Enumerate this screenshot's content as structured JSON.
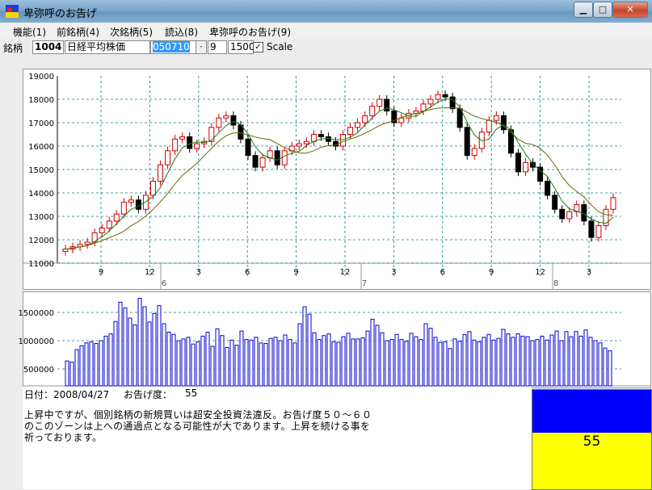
{
  "window": {
    "title": "卑弥呼のお告げ",
    "controls": {
      "minimize": "▁",
      "maximize": "□",
      "close": "✕"
    },
    "icon": "app-icon"
  },
  "menu": [
    {
      "label": "機能(1)"
    },
    {
      "label": "前銘柄(4)"
    },
    {
      "label": "次銘柄(5)"
    },
    {
      "label": "読込(8)"
    },
    {
      "label": "卑弥呼のお告げ(9)"
    }
  ],
  "toolbar": {
    "label": "銘柄",
    "code": "1004",
    "name": "日経平均株価",
    "date": "050710",
    "spin_label": "-",
    "period": "9",
    "count": "1500",
    "scale_checked": "✓",
    "scale_label": "Scale"
  },
  "colors": {
    "up": "#cc0000",
    "down": "#000000",
    "ma_short": "#1a7a1a",
    "ma_long": "#6b6b00",
    "grid": "#008080",
    "volume": "#0000cc",
    "score_top": "#0000ff",
    "score_bottom": "#ffff00"
  },
  "status": {
    "date_label": "日付：2008/04/27",
    "score_label": "お告げ度：",
    "score_value": "55"
  },
  "message": [
    "上昇中ですが、個別銘柄の新規買いは超安全投資法違反。お告げ度５０～６０",
    "のこのゾーンは上への通過点となる可能性が大であります。上昇を続ける事を",
    "祈っております。"
  ],
  "score_box": {
    "value": "55"
  },
  "chart_data": [
    {
      "type": "candlestick",
      "title": "",
      "y_ticks": [
        "19000",
        "18000",
        "17000",
        "16000",
        "15000",
        "14000",
        "13000",
        "12000",
        "11000"
      ],
      "ylim": [
        11000,
        19000
      ],
      "x_month_ticks": [
        "9",
        "12",
        "3",
        "6",
        "9",
        "12",
        "3",
        "6",
        "9",
        "12",
        "3"
      ],
      "x_year_labels": [
        "6",
        "7",
        "8"
      ],
      "grid": true,
      "series": [
        {
          "name": "price",
          "values": [
            11600,
            11700,
            11800,
            11900,
            12300,
            12500,
            12800,
            13100,
            13600,
            13700,
            13300,
            13900,
            14500,
            15200,
            15800,
            16300,
            16400,
            15900,
            16100,
            16200,
            16800,
            17200,
            17300,
            16900,
            16300,
            15600,
            15100,
            15500,
            15800,
            15200,
            15800,
            16000,
            16100,
            16200,
            16500,
            16400,
            16200,
            16000,
            16500,
            16800,
            17000,
            17300,
            17700,
            18000,
            17500,
            17000,
            17200,
            17400,
            17500,
            17800,
            18000,
            18200,
            18100,
            17600,
            16800,
            15600,
            15900,
            16600,
            17100,
            17300,
            16700,
            15700,
            14900,
            15300,
            15100,
            14500,
            13900,
            13300,
            12900,
            13200,
            13500,
            12800,
            12100,
            12600,
            13300,
            13800
          ]
        }
      ]
    },
    {
      "type": "bar",
      "title": "",
      "y_ticks": [
        "1500000",
        "1000000",
        "500000"
      ],
      "ylim": [
        200000,
        1800000
      ],
      "grid": true,
      "series": [
        {
          "name": "volume",
          "values": [
            640000,
            620000,
            840000,
            910000,
            960000,
            980000,
            950000,
            1000000,
            1080000,
            1120000,
            1340000,
            1680000,
            1580000,
            1400000,
            1280000,
            1750000,
            1600000,
            1330000,
            1480000,
            1620000,
            1300000,
            1150000,
            1110000,
            1000000,
            1030000,
            1060000,
            940000,
            980000,
            1080000,
            1150000,
            900000,
            1210000,
            1090000,
            880000,
            1010000,
            920000,
            1170000,
            1020000,
            1010000,
            1060000,
            960000,
            950000,
            1040000,
            1060000,
            1000000,
            1100000,
            1020000,
            960000,
            1300000,
            1600000,
            1470000,
            1140000,
            1020000,
            1090000,
            1120000,
            980000,
            970000,
            1070000,
            1130000,
            1030000,
            1030000,
            1050000,
            1170000,
            1380000,
            1270000,
            1140000,
            1000000,
            1020000,
            1110000,
            1020000,
            990000,
            1130000,
            1070000,
            1020000,
            1300000,
            1220000,
            1060000,
            970000,
            980000,
            860000,
            1030000,
            990000,
            1110000,
            1160000,
            1010000,
            980000,
            1060000,
            1110000,
            1010000,
            1040000,
            1200000,
            1120000,
            1060000,
            1120000,
            1080000,
            1070000,
            1000000,
            1020000,
            1080000,
            1010000,
            1100000,
            1170000,
            1000000,
            1160000,
            1070000,
            1160000,
            1080000,
            1190000,
            1060000,
            1000000,
            960000,
            870000,
            820000
          ]
        }
      ]
    }
  ]
}
